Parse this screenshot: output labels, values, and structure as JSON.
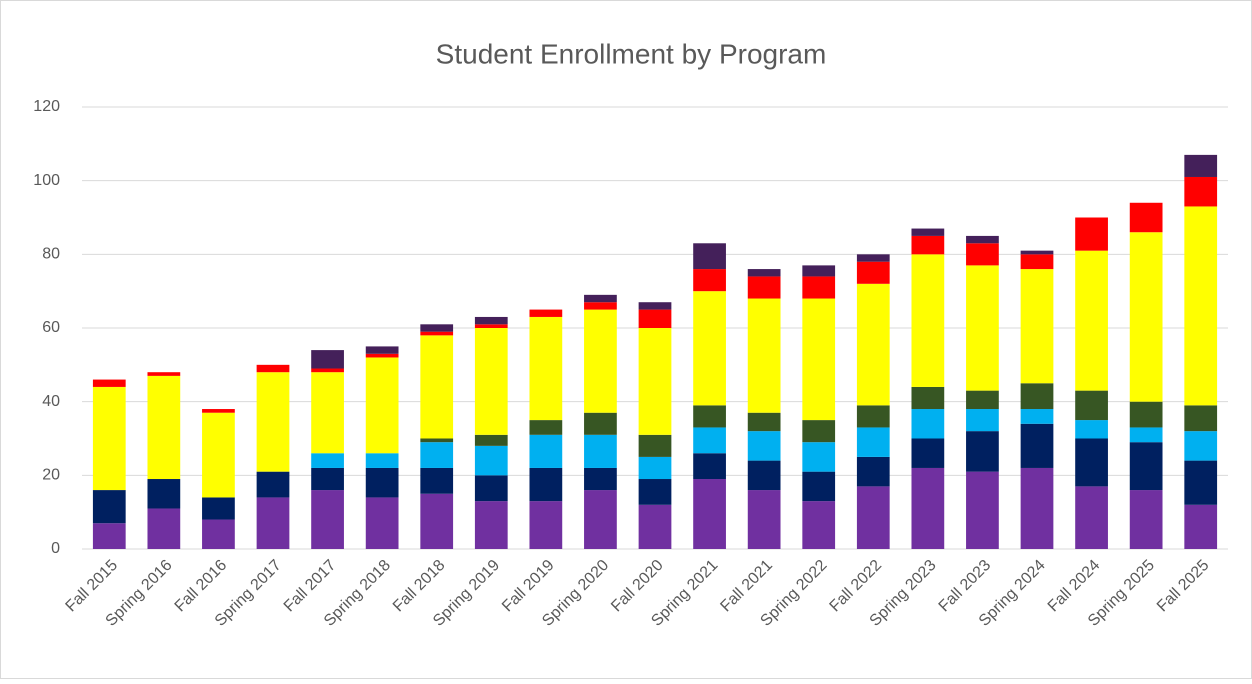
{
  "chart_data": {
    "type": "stacked_bar",
    "title": "Student Enrollment by Program",
    "categories": [
      "Fall 2015",
      "Spring 2016",
      "Fall 2016",
      "Spring 2017",
      "Fall 2017",
      "Spring 2018",
      "Fall 2018",
      "Spring 2019",
      "Fall 2019",
      "Spring 2020",
      "Fall 2020",
      "Spring 2021",
      "Fall 2021",
      "Spring 2022",
      "Fall 2022",
      "Spring 2023",
      "Fall 2023",
      "Spring 2024",
      "Fall 2024",
      "Spring 2025",
      "Fall 2025"
    ],
    "series": [
      {
        "color": "#7030a0",
        "values": [
          7,
          11,
          8,
          14,
          16,
          14,
          15,
          13,
          13,
          16,
          12,
          19,
          16,
          13,
          17,
          22,
          21,
          22,
          17,
          16,
          12
        ]
      },
      {
        "color": "#002060",
        "values": [
          9,
          8,
          6,
          7,
          6,
          8,
          7,
          7,
          9,
          6,
          7,
          7,
          8,
          8,
          8,
          8,
          11,
          12,
          13,
          13,
          12
        ]
      },
      {
        "color": "#00b0f0",
        "values": [
          0,
          0,
          0,
          0,
          4,
          4,
          7,
          8,
          9,
          9,
          6,
          7,
          8,
          8,
          8,
          8,
          6,
          4,
          5,
          4,
          8
        ]
      },
      {
        "color": "#375623",
        "values": [
          0,
          0,
          0,
          0,
          0,
          0,
          1,
          3,
          4,
          6,
          6,
          6,
          5,
          6,
          6,
          6,
          5,
          7,
          8,
          7,
          7
        ]
      },
      {
        "color": "#ffff00",
        "values": [
          28,
          28,
          23,
          27,
          22,
          26,
          28,
          29,
          28,
          28,
          29,
          31,
          31,
          33,
          33,
          36,
          34,
          31,
          38,
          46,
          54
        ]
      },
      {
        "color": "#ff0000",
        "values": [
          2,
          1,
          1,
          2,
          1,
          1,
          1,
          1,
          2,
          2,
          5,
          6,
          6,
          6,
          6,
          5,
          6,
          4,
          9,
          8,
          8
        ]
      },
      {
        "color": "#44205a",
        "values": [
          0,
          0,
          0,
          0,
          5,
          2,
          2,
          2,
          0,
          2,
          2,
          7,
          2,
          3,
          2,
          2,
          2,
          1,
          0,
          0,
          6
        ]
      }
    ],
    "ylim": [
      0,
      120
    ],
    "yticks": [
      0,
      20,
      40,
      60,
      80,
      100,
      120
    ],
    "grid": true
  }
}
